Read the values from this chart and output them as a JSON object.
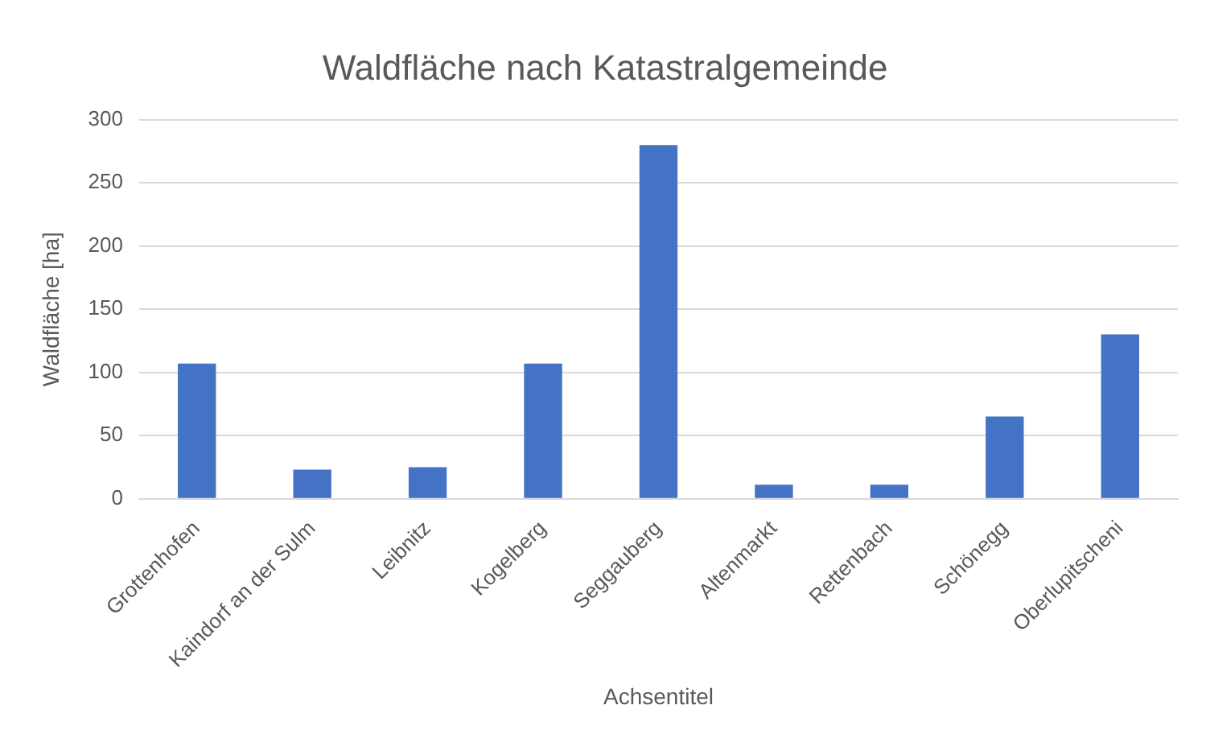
{
  "chart_data": {
    "type": "bar",
    "title": "Waldfläche nach Katastralgemeinde",
    "xlabel": "Achsentitel",
    "ylabel": "Waldfläche [ha]",
    "categories": [
      "Grottenhofen",
      "Kaindorf an der Sulm",
      "Leibnitz",
      "Kogelberg",
      "Seggauberg",
      "Altenmarkt",
      "Rettenbach",
      "Schönegg",
      "Oberlupitscheni"
    ],
    "values": [
      107,
      23,
      25,
      107,
      280,
      11,
      11,
      65,
      130
    ],
    "color": "#4472c4",
    "ylim": [
      0,
      300
    ],
    "yticks": [
      0,
      50,
      100,
      150,
      200,
      250,
      300
    ],
    "grid": "y"
  }
}
